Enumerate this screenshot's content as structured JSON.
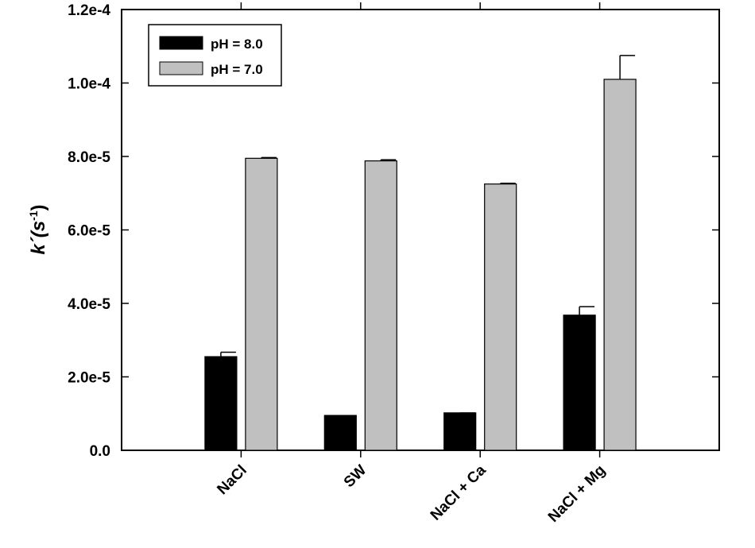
{
  "chart_data": {
    "type": "bar",
    "categories": [
      "NaCl",
      "SW",
      "NaCl + Ca",
      "NaCl + Mg"
    ],
    "series": [
      {
        "name": "pH = 8.0",
        "values": [
          2.55e-05,
          9.5e-06,
          1.02e-05,
          3.68e-05
        ],
        "errors": [
          1.2e-06,
          0,
          0,
          2.3e-06
        ],
        "color": "#000000"
      },
      {
        "name": "pH = 7.0",
        "values": [
          7.95e-05,
          7.88e-05,
          7.25e-05,
          0.000101
        ],
        "errors": [
          2e-07,
          3e-07,
          2e-07,
          6.5e-06
        ],
        "color": "#c0c0c0"
      }
    ],
    "ylabel": {
      "main": "k´(s",
      "sup": "-1",
      "close": ")"
    },
    "ylim": [
      0,
      0.00012
    ],
    "yticks": [
      "0.0",
      "2.0e-5",
      "4.0e-5",
      "6.0e-5",
      "8.0e-5",
      "1.0e-4",
      "1.2e-4"
    ],
    "legend_position": "top-left",
    "grid": false
  }
}
